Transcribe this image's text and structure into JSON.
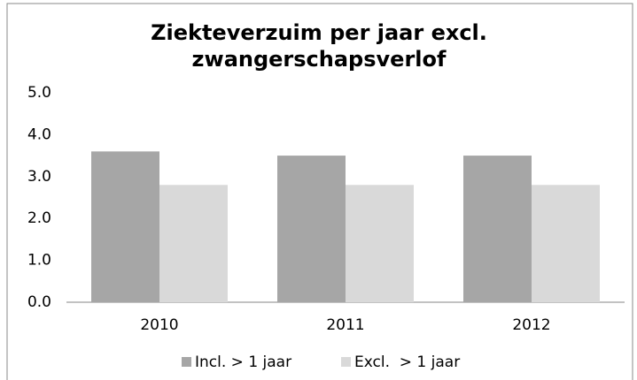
{
  "chart_data": {
    "type": "bar",
    "title": "Ziekteverzuim per jaar excl. zwangerschapsverlof",
    "categories": [
      "2010",
      "2011",
      "2012"
    ],
    "series": [
      {
        "name": "Incl. > 1 jaar",
        "color": "#a6a6a6",
        "values": [
          3.6,
          3.5,
          3.5
        ]
      },
      {
        "name": "Excl.  > 1 jaar",
        "color": "#d9d9d9",
        "values": [
          2.8,
          2.8,
          2.8
        ]
      }
    ],
    "ylim": [
      0,
      5
    ],
    "yticks": [
      {
        "value": 0,
        "label": "0.0"
      },
      {
        "value": 1,
        "label": "1.0"
      },
      {
        "value": 2,
        "label": "2.0"
      },
      {
        "value": 3,
        "label": "3.0"
      },
      {
        "value": 4,
        "label": "4.0"
      },
      {
        "value": 5,
        "label": "5.0"
      }
    ],
    "grid": false,
    "legend": "bottom"
  }
}
